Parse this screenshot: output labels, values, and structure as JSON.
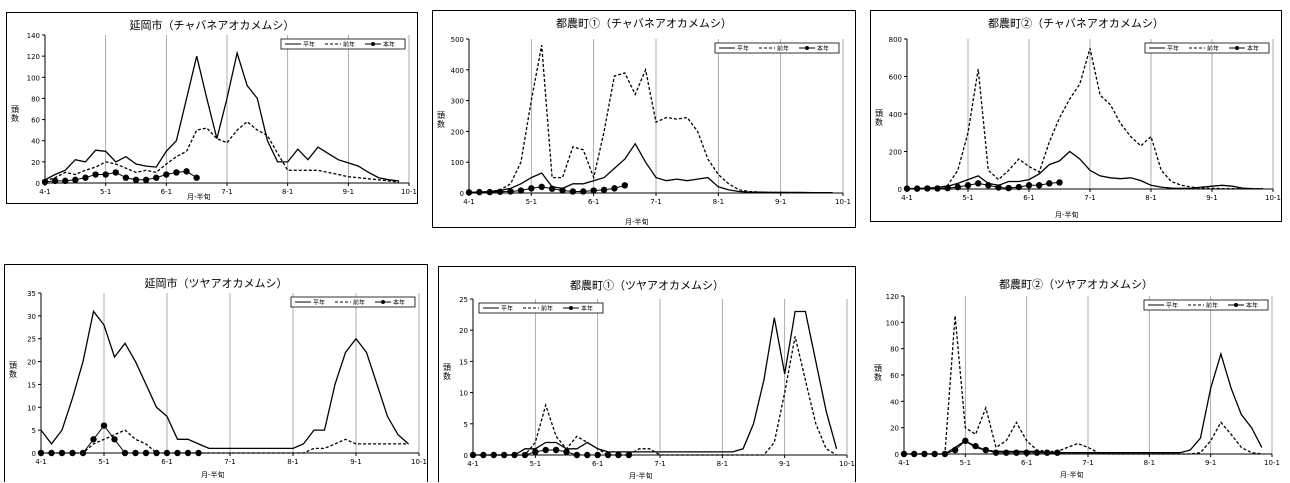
{
  "chart_data": [
    {
      "type": "line",
      "title": "延岡市（チャバネアオカメムシ）",
      "ylabel": "頭数",
      "xlabel": "月-半旬",
      "ylim": [
        0,
        140
      ],
      "yticks": [
        0,
        20,
        40,
        60,
        80,
        100,
        120,
        140
      ],
      "x_tick_labels": [
        "4-1",
        "5-1",
        "6-1",
        "7-1",
        "8-1",
        "9-1",
        "10-1"
      ],
      "grid": "vertical at month starts",
      "legend": "top-right",
      "series": [
        {
          "name": "平年",
          "style": "solid",
          "values": [
            3,
            8,
            12,
            22,
            20,
            31,
            30,
            20,
            25,
            18,
            16,
            15,
            30,
            40,
            80,
            120,
            80,
            42,
            80,
            123,
            92,
            80,
            40,
            20,
            20,
            32,
            22,
            34,
            28,
            22,
            19,
            16,
            10,
            5,
            3,
            2
          ]
        },
        {
          "name": "前年",
          "style": "dashed",
          "values": [
            2,
            5,
            10,
            8,
            12,
            15,
            20,
            18,
            14,
            10,
            12,
            10,
            18,
            25,
            30,
            50,
            52,
            42,
            38,
            50,
            58,
            50,
            45,
            28,
            12,
            12,
            12,
            12,
            10,
            8,
            6,
            5,
            4,
            3,
            2,
            1
          ]
        },
        {
          "name": "本年",
          "style": "solid-marker",
          "values": [
            1,
            2,
            2,
            3,
            5,
            8,
            8,
            10,
            5,
            3,
            3,
            5,
            8,
            10,
            11,
            5
          ]
        }
      ]
    },
    {
      "type": "line",
      "title": "都農町①（チャバネアオカメムシ）",
      "ylabel": "頭数",
      "xlabel": "月-半旬",
      "ylim": [
        0,
        500
      ],
      "yticks": [
        0,
        100,
        200,
        300,
        400,
        500
      ],
      "x_tick_labels": [
        "4-1",
        "5-1",
        "6-1",
        "7-1",
        "8-1",
        "9-1",
        "10-1"
      ],
      "grid": "vertical at month starts",
      "legend": "top-right",
      "series": [
        {
          "name": "平年",
          "style": "solid",
          "values": [
            2,
            3,
            5,
            8,
            15,
            30,
            50,
            65,
            20,
            15,
            30,
            30,
            40,
            50,
            80,
            110,
            160,
            100,
            50,
            40,
            45,
            40,
            45,
            50,
            20,
            10,
            5,
            3,
            3,
            2,
            2,
            2,
            2,
            1,
            1,
            1
          ]
        },
        {
          "name": "前年",
          "style": "dashed",
          "values": [
            1,
            2,
            5,
            10,
            30,
            100,
            300,
            480,
            50,
            50,
            150,
            140,
            50,
            200,
            380,
            390,
            320,
            400,
            230,
            245,
            240,
            245,
            200,
            110,
            60,
            30,
            10,
            5,
            3,
            2,
            2,
            1,
            1,
            1,
            1,
            1
          ]
        },
        {
          "name": "本年",
          "style": "solid-marker",
          "values": [
            2,
            3,
            3,
            4,
            5,
            8,
            15,
            20,
            14,
            8,
            5,
            5,
            8,
            10,
            15,
            25
          ]
        }
      ]
    },
    {
      "type": "line",
      "title": "都農町②（チャバネアオカメムシ）",
      "ylabel": "頭数",
      "xlabel": "月-半旬",
      "ylim": [
        0,
        800
      ],
      "yticks": [
        0,
        200,
        400,
        600,
        800
      ],
      "x_tick_labels": [
        "4-1",
        "5-1",
        "6-1",
        "7-1",
        "8-1",
        "9-1",
        "10-1"
      ],
      "grid": "vertical at month starts",
      "legend": "top-right",
      "series": [
        {
          "name": "平年",
          "style": "solid",
          "values": [
            2,
            3,
            5,
            8,
            15,
            30,
            50,
            70,
            30,
            20,
            40,
            40,
            50,
            80,
            130,
            150,
            200,
            160,
            100,
            70,
            60,
            55,
            60,
            45,
            20,
            10,
            5,
            3,
            5,
            10,
            15,
            20,
            15,
            5,
            2,
            1
          ]
        },
        {
          "name": "前年",
          "style": "dashed",
          "values": [
            1,
            2,
            3,
            5,
            20,
            100,
            300,
            640,
            100,
            50,
            100,
            160,
            120,
            90,
            250,
            380,
            480,
            560,
            750,
            500,
            450,
            350,
            280,
            230,
            280,
            100,
            40,
            20,
            10,
            5,
            3,
            2,
            2,
            1,
            1,
            1
          ]
        },
        {
          "name": "本年",
          "style": "solid-marker",
          "values": [
            2,
            2,
            3,
            3,
            5,
            10,
            20,
            30,
            20,
            8,
            5,
            10,
            20,
            20,
            30,
            35
          ]
        }
      ]
    },
    {
      "type": "line",
      "title": "延岡市（ツヤアオカメムシ）",
      "ylabel": "頭数",
      "xlabel": "月-半旬",
      "ylim": [
        0,
        35
      ],
      "yticks": [
        0,
        5,
        10,
        15,
        20,
        25,
        30,
        35
      ],
      "x_tick_labels": [
        "4-1",
        "5-1",
        "6-1",
        "7-1",
        "8-1",
        "9-1",
        "10-1"
      ],
      "grid": "vertical at month starts",
      "legend": "top-right",
      "series": [
        {
          "name": "平年",
          "style": "solid",
          "values": [
            5,
            2,
            5,
            12,
            20,
            31,
            28,
            21,
            24,
            20,
            15,
            10,
            8,
            3,
            3,
            2,
            1,
            1,
            1,
            1,
            1,
            1,
            1,
            1,
            1,
            2,
            5,
            5,
            15,
            22,
            25,
            22,
            15,
            8,
            4,
            2
          ]
        },
        {
          "name": "前年",
          "style": "dashed",
          "values": [
            0,
            0,
            0,
            0,
            0,
            2,
            3,
            4,
            5,
            3,
            2,
            0,
            0,
            0,
            0,
            0,
            0,
            0,
            0,
            0,
            0,
            0,
            0,
            0,
            0,
            0,
            1,
            1,
            2,
            3,
            2,
            2,
            2,
            2,
            2,
            2
          ]
        },
        {
          "name": "本年",
          "style": "solid-marker",
          "values": [
            0,
            0,
            0,
            0,
            0,
            3,
            6,
            3,
            0,
            0,
            0,
            0,
            0,
            0,
            0,
            0
          ]
        }
      ]
    },
    {
      "type": "line",
      "title": "都農町①（ツヤアオカメムシ）",
      "ylabel": "頭数",
      "xlabel": "月-半旬",
      "ylim": [
        0,
        25
      ],
      "yticks": [
        0,
        5,
        10,
        15,
        20,
        25
      ],
      "x_tick_labels": [
        "4-1",
        "5-1",
        "6-1",
        "7-1",
        "8-1",
        "9-1",
        "10-1"
      ],
      "grid": "vertical at month starts",
      "legend": "top-left",
      "series": [
        {
          "name": "平年",
          "style": "solid",
          "values": [
            0,
            0,
            0,
            0,
            0,
            1,
            1,
            2,
            2,
            1,
            1,
            2,
            1,
            0.5,
            0.5,
            0.5,
            0.5,
            0.5,
            0.5,
            0.5,
            0.5,
            0.5,
            0.5,
            0.5,
            0.5,
            0.5,
            1,
            5,
            12,
            22,
            13,
            23,
            23,
            15,
            7,
            1
          ]
        },
        {
          "name": "前年",
          "style": "dashed",
          "values": [
            0,
            0,
            0,
            0,
            0,
            0,
            2,
            8,
            3,
            1,
            3,
            2,
            1,
            0,
            0,
            0,
            1,
            1,
            0,
            0,
            0,
            0,
            0,
            0,
            0,
            0,
            0,
            0,
            0,
            2,
            10,
            19,
            12,
            5,
            1,
            0
          ]
        },
        {
          "name": "本年",
          "style": "solid-marker",
          "values": [
            0,
            0,
            0,
            0,
            0,
            0,
            0.5,
            0.8,
            0.8,
            0.5,
            0,
            0,
            0,
            0,
            0,
            0
          ]
        }
      ]
    },
    {
      "type": "line",
      "title": "都農町②（ツヤアオカメムシ）",
      "ylabel": "頭数",
      "xlabel": "月-半旬",
      "ylim": [
        0,
        120
      ],
      "yticks": [
        0,
        20,
        40,
        60,
        80,
        100,
        120
      ],
      "x_tick_labels": [
        "4-1",
        "5-1",
        "6-1",
        "7-1",
        "8-1",
        "9-1",
        "10-1"
      ],
      "grid": "vertical at month starts",
      "legend": "top-right",
      "series": [
        {
          "name": "平年",
          "style": "solid",
          "values": [
            0,
            0,
            0,
            0,
            0,
            5,
            10,
            5,
            3,
            2,
            2,
            2,
            2,
            2,
            1,
            1,
            1,
            1,
            1,
            1,
            1,
            1,
            1,
            1,
            1,
            1,
            1,
            1,
            3,
            12,
            50,
            76,
            50,
            30,
            20,
            5
          ]
        },
        {
          "name": "前年",
          "style": "dashed",
          "values": [
            0,
            0,
            0,
            0,
            0,
            105,
            20,
            15,
            35,
            5,
            10,
            24,
            10,
            3,
            2,
            2,
            5,
            8,
            5,
            1,
            0,
            0,
            0,
            0,
            0,
            0,
            0,
            0,
            0,
            1,
            10,
            24,
            15,
            5,
            1,
            0
          ]
        },
        {
          "name": "本年",
          "style": "solid-marker",
          "values": [
            0,
            0,
            0,
            0,
            0,
            3,
            10,
            6,
            3,
            1,
            1,
            1,
            1,
            1,
            1,
            1
          ]
        }
      ]
    }
  ]
}
